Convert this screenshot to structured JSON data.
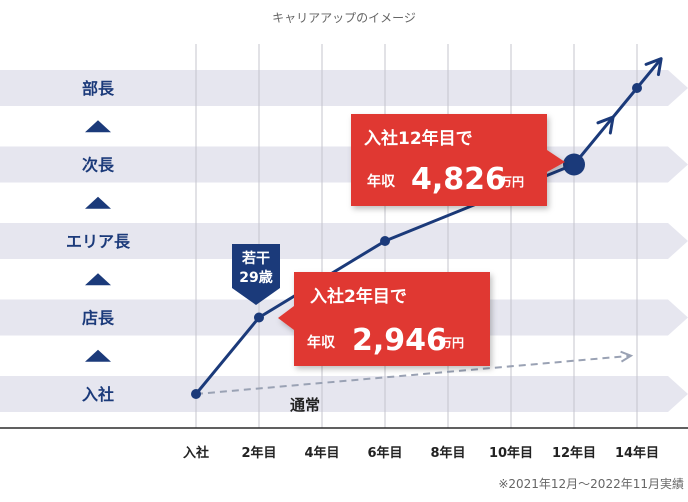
{
  "chart_data": {
    "type": "line",
    "title": "キャリアアップのイメージ",
    "x_labels": [
      "入社",
      "2年目",
      "4年目",
      "6年目",
      "8年目",
      "10年目",
      "12年目",
      "14年目"
    ],
    "x_values": [
      0,
      2,
      4,
      6,
      8,
      10,
      12,
      14
    ],
    "xlim": [
      0,
      14
    ],
    "levels": [
      "入社",
      "店長",
      "エリア長",
      "次長",
      "部長"
    ],
    "ylim": [
      0,
      4
    ],
    "series": [
      {
        "name": "キャリアアップ",
        "points": [
          {
            "x": 0,
            "y": 0
          },
          {
            "x": 2,
            "y": 1
          },
          {
            "x": 6,
            "y": 2
          },
          {
            "x": 12,
            "y": 3
          },
          {
            "x": 14,
            "y": 4
          }
        ],
        "color": "#1b3a7a"
      },
      {
        "name": "通常",
        "points": [
          {
            "x": 0,
            "y": 0
          },
          {
            "x": 14,
            "y": 0.5
          }
        ],
        "color": "#9aa2b4",
        "dashed": true
      }
    ],
    "annotations": {
      "age_badge_line1": "若干",
      "age_badge_line2": "29歳",
      "normal_label": "通常",
      "callout_12": {
        "line1": "入社12年目で",
        "prefix": "年収",
        "amount": "4,826",
        "unit": "万円"
      },
      "callout_2": {
        "line1": "入社2年目で",
        "prefix": "年収",
        "amount": "2,946",
        "unit": "万円"
      }
    },
    "footnote": "※2021年12月～2022年11月実績"
  },
  "colors": {
    "band": "#e6e6ef",
    "grid": "#c4c4cc",
    "axis": "#2b2b2b",
    "navy": "#1b3a7a",
    "red": "#e03830",
    "dashed": "#9aa2b4",
    "text": "#333333",
    "subtext": "#666666"
  }
}
